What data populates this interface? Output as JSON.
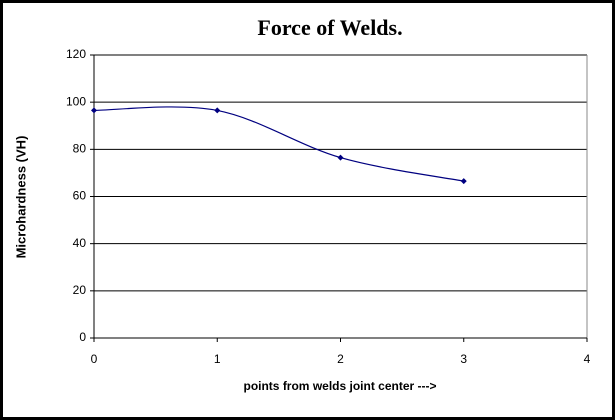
{
  "chart_data": {
    "type": "line",
    "title": "Force of Welds.",
    "x_label": "points from welds joint center --->",
    "y_label": "Microhardness (VH)",
    "series": [
      {
        "name": "Microhardness",
        "color": "#000080",
        "x": [
          0,
          1,
          2,
          3
        ],
        "values": [
          96.5,
          96.5,
          76.5,
          66.5
        ]
      }
    ],
    "xlim": [
      0,
      4
    ],
    "xticks": [
      0,
      1,
      2,
      3,
      4
    ],
    "ylim": [
      0,
      120
    ],
    "yticks": [
      0,
      20,
      40,
      60,
      80,
      100,
      120
    ],
    "grid": true,
    "smooth": true
  }
}
